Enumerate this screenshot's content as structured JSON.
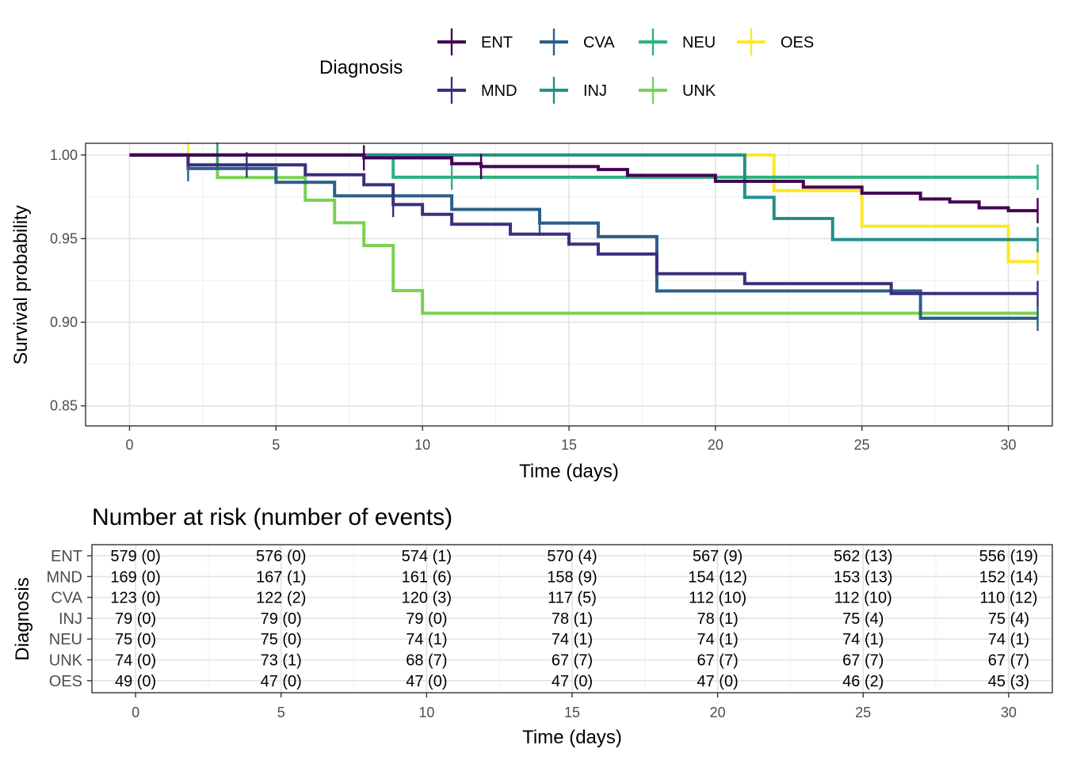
{
  "chart_data": [
    {
      "type": "line",
      "step": true,
      "xlabel": "Time (days)",
      "ylabel": "Survival probability",
      "xlim": [
        -1.5,
        31.5
      ],
      "ylim": [
        0.838,
        1.007
      ],
      "xticks": [
        0,
        5,
        10,
        15,
        20,
        25,
        30
      ],
      "yticks": [
        0.85,
        0.9,
        0.95,
        1.0
      ],
      "ytick_labels": [
        "0.85",
        "0.90",
        "0.95",
        "1.00"
      ],
      "grid": true,
      "legend": {
        "title": "Diagnosis",
        "position": "top",
        "order": [
          "ENT",
          "CVA",
          "NEU",
          "OES",
          "MND",
          "INJ",
          "UNK"
        ]
      },
      "series": [
        {
          "name": "ENT",
          "color": "#440154",
          "points": [
            [
              0,
              1.0
            ],
            [
              8,
              0.9983
            ],
            [
              11,
              0.9948
            ],
            [
              12,
              0.9931
            ],
            [
              16,
              0.9913
            ],
            [
              17,
              0.9878
            ],
            [
              20,
              0.9843
            ],
            [
              23,
              0.9808
            ],
            [
              25,
              0.9772
            ],
            [
              27,
              0.9737
            ],
            [
              28,
              0.9719
            ],
            [
              29,
              0.9684
            ],
            [
              30,
              0.9667
            ],
            [
              31,
              0.9667
            ]
          ],
          "censor": [
            8,
            12,
            31
          ]
        },
        {
          "name": "MND",
          "color": "#3B2F7F",
          "points": [
            [
              0,
              1.0
            ],
            [
              2,
              0.9941
            ],
            [
              6,
              0.9882
            ],
            [
              8,
              0.9822
            ],
            [
              9,
              0.9704
            ],
            [
              10,
              0.9645
            ],
            [
              11,
              0.9586
            ],
            [
              13,
              0.9527
            ],
            [
              15,
              0.9467
            ],
            [
              16,
              0.9408
            ],
            [
              18,
              0.929
            ],
            [
              21,
              0.9231
            ],
            [
              26,
              0.9172
            ],
            [
              31,
              0.9172
            ]
          ],
          "censor": [
            4,
            9,
            31
          ]
        },
        {
          "name": "CVA",
          "color": "#2C5F8A",
          "points": [
            [
              0,
              1.0
            ],
            [
              2,
              0.9919
            ],
            [
              5,
              0.9837
            ],
            [
              7,
              0.9756
            ],
            [
              11,
              0.9675
            ],
            [
              14,
              0.9593
            ],
            [
              16,
              0.9512
            ],
            [
              18,
              0.9187
            ],
            [
              27,
              0.9024
            ],
            [
              31,
              0.9024
            ]
          ],
          "censor": [
            2,
            14,
            31
          ]
        },
        {
          "name": "INJ",
          "color": "#21908C",
          "points": [
            [
              0,
              1.0
            ],
            [
              21,
              0.9747
            ],
            [
              22,
              0.962
            ],
            [
              24,
              0.9494
            ],
            [
              31,
              0.9494
            ]
          ],
          "censor": [
            3,
            31
          ]
        },
        {
          "name": "NEU",
          "color": "#2DB27D",
          "points": [
            [
              0,
              1.0
            ],
            [
              9,
              0.9867
            ],
            [
              31,
              0.9867
            ]
          ],
          "censor": [
            11,
            31
          ]
        },
        {
          "name": "UNK",
          "color": "#7AD151",
          "points": [
            [
              0,
              1.0
            ],
            [
              3,
              0.9865
            ],
            [
              6,
              0.973
            ],
            [
              7,
              0.9595
            ],
            [
              8,
              0.9459
            ],
            [
              9,
              0.9189
            ],
            [
              10,
              0.9054
            ],
            [
              31,
              0.9054
            ]
          ],
          "censor": [
            31
          ]
        },
        {
          "name": "OES",
          "color": "#FDE725",
          "points": [
            [
              0,
              1.0
            ],
            [
              22,
              0.9787
            ],
            [
              25,
              0.9574
            ],
            [
              30,
              0.9362
            ],
            [
              31,
              0.9362
            ]
          ],
          "censor": [
            2,
            3,
            31
          ]
        }
      ]
    },
    {
      "type": "table",
      "title": "Number at risk (number of events)",
      "xlabel": "Time (days)",
      "ylabel": "Diagnosis",
      "times": [
        0,
        5,
        10,
        15,
        20,
        25,
        30
      ],
      "rows": [
        {
          "name": "ENT",
          "cells": [
            "579 (0)",
            "576 (0)",
            "574 (1)",
            "570 (4)",
            "567 (9)",
            "562 (13)",
            "556 (19)"
          ]
        },
        {
          "name": "MND",
          "cells": [
            "169 (0)",
            "167 (1)",
            "161 (6)",
            "158 (9)",
            "154 (12)",
            "153 (13)",
            "152 (14)"
          ]
        },
        {
          "name": "CVA",
          "cells": [
            "123 (0)",
            "122 (2)",
            "120 (3)",
            "117 (5)",
            "112 (10)",
            "112 (10)",
            "110 (12)"
          ]
        },
        {
          "name": "INJ",
          "cells": [
            "79 (0)",
            "79 (0)",
            "79 (0)",
            "78 (1)",
            "78 (1)",
            "75 (4)",
            "75 (4)"
          ]
        },
        {
          "name": "NEU",
          "cells": [
            "75 (0)",
            "75 (0)",
            "74 (1)",
            "74 (1)",
            "74 (1)",
            "74 (1)",
            "74 (1)"
          ]
        },
        {
          "name": "UNK",
          "cells": [
            "74 (0)",
            "73 (1)",
            "68 (7)",
            "67 (7)",
            "67 (7)",
            "67 (7)",
            "67 (7)"
          ]
        },
        {
          "name": "OES",
          "cells": [
            "49 (0)",
            "47 (0)",
            "47 (0)",
            "47 (0)",
            "47 (0)",
            "46 (2)",
            "45 (3)"
          ]
        }
      ]
    }
  ]
}
